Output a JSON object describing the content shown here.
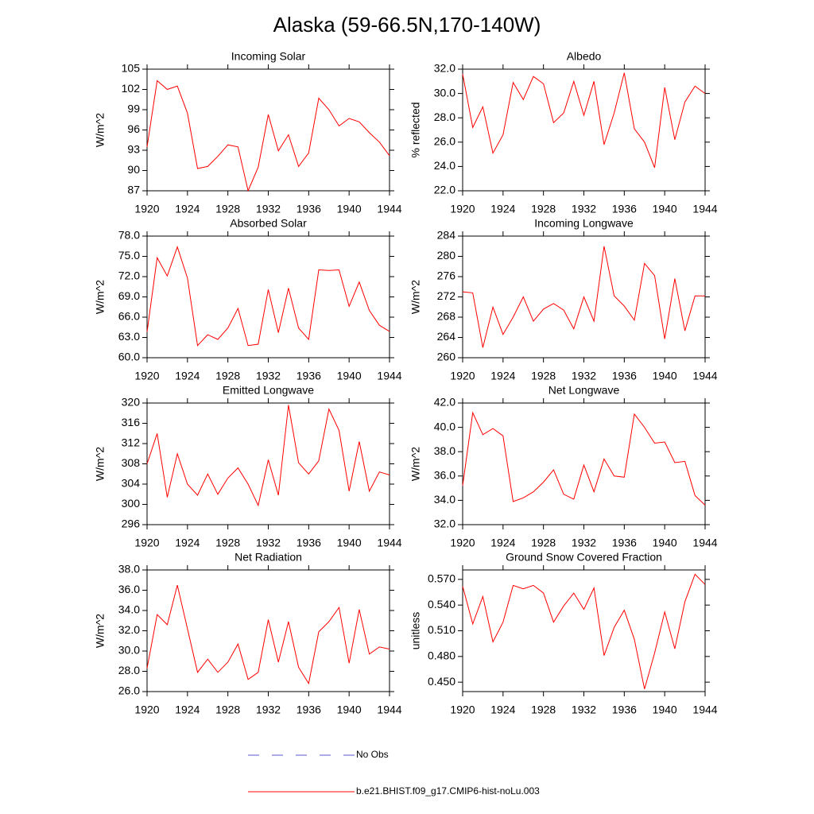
{
  "title": "Alaska (59-66.5N,170-140W)",
  "legend": [
    {
      "name": "No Obs",
      "color": "#5a5ad0",
      "dashed": true
    },
    {
      "name": "b.e21.BHIST.f09_g17.CMIP6-hist-noLu.003",
      "color": "#ff0000",
      "dashed": false
    }
  ],
  "chart_data": [
    {
      "type": "line",
      "title": "Incoming Solar",
      "y_label": "W/m^2",
      "color": "#ff0000",
      "x": [
        1920,
        1921,
        1922,
        1923,
        1924,
        1925,
        1926,
        1927,
        1928,
        1929,
        1930,
        1931,
        1932,
        1933,
        1934,
        1935,
        1936,
        1937,
        1938,
        1939,
        1940,
        1941,
        1942,
        1943,
        1944
      ],
      "values": [
        93.5,
        103.3,
        102,
        102.5,
        98.5,
        90.3,
        90.6,
        92.1,
        93.8,
        93.5,
        87,
        90.5,
        98.3,
        92.9,
        95.3,
        90.6,
        92.6,
        100.7,
        99,
        96.6,
        97.7,
        97.2,
        95.6,
        94.2,
        92.2
      ],
      "xlim": [
        1920,
        1944
      ],
      "xticks": [
        1920,
        1924,
        1928,
        1932,
        1936,
        1940,
        1944
      ],
      "ylim": [
        87,
        105
      ],
      "yticks": [
        87,
        90,
        93,
        96,
        99,
        102,
        105
      ]
    },
    {
      "type": "line",
      "title": "Albedo",
      "y_label": "% reflected",
      "color": "#ff0000",
      "x": [
        1920,
        1921,
        1922,
        1923,
        1924,
        1925,
        1926,
        1927,
        1928,
        1929,
        1930,
        1931,
        1932,
        1933,
        1934,
        1935,
        1936,
        1937,
        1938,
        1939,
        1940,
        1941,
        1942,
        1943,
        1944
      ],
      "values": [
        31.6,
        27.2,
        28.9,
        25.1,
        26.6,
        30.9,
        29.5,
        31.4,
        30.8,
        27.6,
        28.4,
        31.0,
        28.2,
        31.0,
        25.8,
        28.4,
        31.7,
        27.1,
        26.0,
        23.9,
        30.5,
        26.2,
        29.3,
        30.6,
        30.0
      ],
      "xlim": [
        1920,
        1944
      ],
      "xticks": [
        1920,
        1924,
        1928,
        1932,
        1936,
        1940,
        1944
      ],
      "ylim": [
        22,
        32
      ],
      "yticks": [
        {
          "value": 22,
          "label": "22.0"
        },
        {
          "value": 24,
          "label": "24.0"
        },
        {
          "value": 26,
          "label": "26.0"
        },
        {
          "value": 28,
          "label": "28.0"
        },
        {
          "value": 30,
          "label": "30.0"
        },
        {
          "value": 32,
          "label": "32.0"
        }
      ]
    },
    {
      "type": "line",
      "title": "Absorbed Solar",
      "y_label": "W/m^2",
      "color": "#ff0000",
      "x": [
        1920,
        1921,
        1922,
        1923,
        1924,
        1925,
        1926,
        1927,
        1928,
        1929,
        1930,
        1931,
        1932,
        1933,
        1934,
        1935,
        1936,
        1937,
        1938,
        1939,
        1940,
        1941,
        1942,
        1943,
        1944
      ],
      "values": [
        63.8,
        74.8,
        72.1,
        76.4,
        71.8,
        61.8,
        63.4,
        62.7,
        64.4,
        67.3,
        61.8,
        62.0,
        70.1,
        63.7,
        70.3,
        64.4,
        62.7,
        73.0,
        72.9,
        73.0,
        67.6,
        71.2,
        67.0,
        64.8,
        63.9
      ],
      "xlim": [
        1920,
        1944
      ],
      "xticks": [
        1920,
        1924,
        1928,
        1932,
        1936,
        1940,
        1944
      ],
      "ylim": [
        60,
        78
      ],
      "yticks": [
        {
          "value": 60,
          "label": "60.0"
        },
        {
          "value": 63,
          "label": "63.0"
        },
        {
          "value": 66,
          "label": "66.0"
        },
        {
          "value": 69,
          "label": "69.0"
        },
        {
          "value": 72,
          "label": "72.0"
        },
        {
          "value": 75,
          "label": "75.0"
        },
        {
          "value": 78,
          "label": "78.0"
        }
      ]
    },
    {
      "type": "line",
      "title": "Incoming Longwave",
      "y_label": "W/m^2",
      "color": "#ff0000",
      "x": [
        1920,
        1921,
        1922,
        1923,
        1924,
        1925,
        1926,
        1927,
        1928,
        1929,
        1930,
        1931,
        1932,
        1933,
        1934,
        1935,
        1936,
        1937,
        1938,
        1939,
        1940,
        1941,
        1942,
        1943,
        1944
      ],
      "values": [
        273,
        272.8,
        262,
        270,
        264.6,
        268,
        272,
        267.2,
        269.6,
        270.7,
        269.4,
        265.7,
        272,
        267.2,
        282,
        272.2,
        270.2,
        267.4,
        278.6,
        276.2,
        263.7,
        275.6,
        265.3,
        272.2,
        272.2
      ],
      "xlim": [
        1920,
        1944
      ],
      "xticks": [
        1920,
        1924,
        1928,
        1932,
        1936,
        1940,
        1944
      ],
      "ylim": [
        260,
        284
      ],
      "yticks": [
        260,
        264,
        268,
        272,
        276,
        280,
        284
      ]
    },
    {
      "type": "line",
      "title": "Emitted Longwave",
      "y_label": "W/m^2",
      "color": "#ff0000",
      "x": [
        1920,
        1921,
        1922,
        1923,
        1924,
        1925,
        1926,
        1927,
        1928,
        1929,
        1930,
        1931,
        1932,
        1933,
        1934,
        1935,
        1936,
        1937,
        1938,
        1939,
        1940,
        1941,
        1942,
        1943,
        1944
      ],
      "values": [
        308,
        314,
        301.4,
        310,
        304,
        301.8,
        306,
        302,
        305.2,
        307.2,
        304,
        299.8,
        308.8,
        301.8,
        319.6,
        308.2,
        306,
        308.6,
        318.8,
        314.6,
        302.6,
        312.4,
        302.6,
        306.4,
        305.8
      ],
      "xlim": [
        1920,
        1944
      ],
      "xticks": [
        1920,
        1924,
        1928,
        1932,
        1936,
        1940,
        1944
      ],
      "ylim": [
        296,
        320
      ],
      "yticks": [
        296,
        300,
        304,
        308,
        312,
        316,
        320
      ]
    },
    {
      "type": "line",
      "title": "Net Longwave",
      "y_label": "W/m^2",
      "color": "#ff0000",
      "x": [
        1920,
        1921,
        1922,
        1923,
        1924,
        1925,
        1926,
        1927,
        1928,
        1929,
        1930,
        1931,
        1932,
        1933,
        1934,
        1935,
        1936,
        1937,
        1938,
        1939,
        1940,
        1941,
        1942,
        1943,
        1944
      ],
      "values": [
        35.2,
        41.2,
        39.4,
        39.9,
        39.3,
        33.9,
        34.2,
        34.7,
        35.5,
        36.5,
        34.5,
        34.1,
        36.9,
        34.7,
        37.4,
        36.0,
        35.9,
        41.1,
        40.0,
        38.7,
        38.8,
        37.1,
        37.2,
        34.4,
        33.6
      ],
      "xlim": [
        1920,
        1944
      ],
      "xticks": [
        1920,
        1924,
        1928,
        1932,
        1936,
        1940,
        1944
      ],
      "ylim": [
        32,
        42
      ],
      "yticks": [
        {
          "value": 32,
          "label": "32.0"
        },
        {
          "value": 34,
          "label": "34.0"
        },
        {
          "value": 36,
          "label": "36.0"
        },
        {
          "value": 38,
          "label": "38.0"
        },
        {
          "value": 40,
          "label": "40.0"
        },
        {
          "value": 42,
          "label": "42.0"
        }
      ]
    },
    {
      "type": "line",
      "title": "Net Radiation",
      "y_label": "W/m^2",
      "color": "#ff0000",
      "x": [
        1920,
        1921,
        1922,
        1923,
        1924,
        1925,
        1926,
        1927,
        1928,
        1929,
        1930,
        1931,
        1932,
        1933,
        1934,
        1935,
        1936,
        1937,
        1938,
        1939,
        1940,
        1941,
        1942,
        1943,
        1944
      ],
      "values": [
        28.3,
        33.6,
        32.6,
        36.5,
        32.2,
        27.9,
        29.2,
        27.9,
        28.9,
        30.7,
        27.2,
        27.9,
        33.1,
        28.9,
        32.9,
        28.4,
        26.8,
        31.9,
        32.9,
        34.3,
        28.8,
        34.1,
        29.7,
        30.4,
        30.2
      ],
      "xlim": [
        1920,
        1944
      ],
      "xticks": [
        1920,
        1924,
        1928,
        1932,
        1936,
        1940,
        1944
      ],
      "ylim": [
        26,
        38
      ],
      "yticks": [
        {
          "value": 26,
          "label": "26.0"
        },
        {
          "value": 28,
          "label": "28.0"
        },
        {
          "value": 30,
          "label": "30.0"
        },
        {
          "value": 32,
          "label": "32.0"
        },
        {
          "value": 34,
          "label": "34.0"
        },
        {
          "value": 36,
          "label": "36.0"
        },
        {
          "value": 38,
          "label": "38.0"
        }
      ]
    },
    {
      "type": "line",
      "title": "Ground Snow Covered Fraction",
      "y_label": "unitless",
      "color": "#ff0000",
      "x": [
        1920,
        1921,
        1922,
        1923,
        1924,
        1925,
        1926,
        1927,
        1928,
        1929,
        1930,
        1931,
        1932,
        1933,
        1934,
        1935,
        1936,
        1937,
        1938,
        1939,
        1940,
        1941,
        1942,
        1943,
        1944
      ],
      "values": [
        0.562,
        0.518,
        0.55,
        0.497,
        0.52,
        0.563,
        0.559,
        0.563,
        0.554,
        0.52,
        0.539,
        0.554,
        0.535,
        0.56,
        0.481,
        0.514,
        0.534,
        0.5,
        0.442,
        0.484,
        0.532,
        0.489,
        0.544,
        0.576,
        0.564
      ],
      "xlim": [
        1920,
        1944
      ],
      "xticks": [
        1920,
        1924,
        1928,
        1932,
        1936,
        1940,
        1944
      ],
      "ylim": [
        0.439,
        0.581
      ],
      "yticks": [
        {
          "value": 0.45,
          "label": "0.450"
        },
        {
          "value": 0.48,
          "label": "0.480"
        },
        {
          "value": 0.51,
          "label": "0.510"
        },
        {
          "value": 0.54,
          "label": "0.540"
        },
        {
          "value": 0.57,
          "label": "0.570"
        }
      ]
    }
  ]
}
